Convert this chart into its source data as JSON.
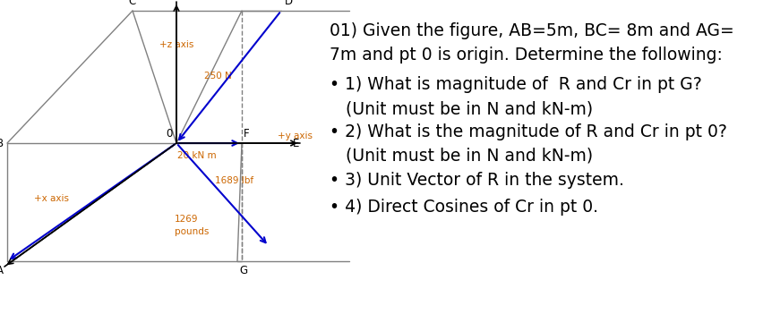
{
  "bg_color": "#ffffff",
  "box_color": "#808080",
  "blue_color": "#0000cd",
  "orange_color": "#cc6600",
  "black_color": "#000000",
  "z_axis_label": "+z axis",
  "y_axis_label": "+y axis",
  "x_axis_label": "+x axis",
  "force_250": "250 N",
  "force_20": "20 kN m",
  "force_1689": "1689 lbf",
  "force_1269a": "1269",
  "force_1269b": "pounds",
  "title_line1": "01) Given the figure, AB=5m, BC= 8m and AG=",
  "title_line2": "7m and pt 0 is origin. Determine the following:",
  "bullet1a": "• 1) What is magnitude of  R and Cr in pt G?",
  "bullet1b": "(Unit must be in N and kN-m)",
  "bullet2a": "• 2) What is the magnitude of R and Cr in pt 0?",
  "bullet2b": "(Unit must be in N and kN-m)",
  "bullet3": "• 3) Unit Vector of R in the system.",
  "bullet4": "• 4) Direct Cosines of Cr in pt 0.",
  "font_size_labels": 7.5,
  "font_size_text": 13.5
}
